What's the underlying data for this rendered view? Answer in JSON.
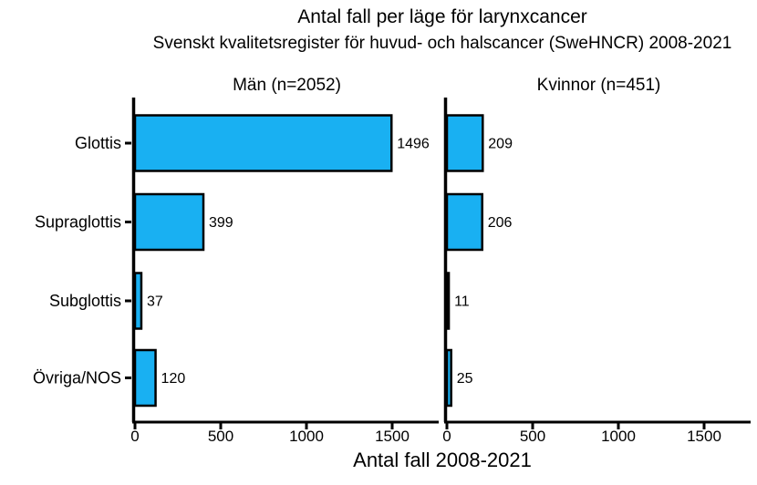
{
  "chart_data": {
    "type": "bar",
    "orientation": "horizontal",
    "title": "Antal fall per läge för larynxcancer",
    "subtitle": "Svenskt kvalitetsregister för huvud- och halscancer (SweHNCR) 2008-2021",
    "xlabel": "Antal fall 2008-2021",
    "categories": [
      "Glottis",
      "Supraglottis",
      "Subglottis",
      "Övriga/NOS"
    ],
    "series": [
      {
        "name": "Män (n=2052)",
        "values": [
          1496,
          399,
          37,
          120
        ]
      },
      {
        "name": "Kvinnor (n=451)",
        "values": [
          209,
          206,
          11,
          25
        ]
      }
    ],
    "xticks": [
      "0",
      "500",
      "1000",
      "1500"
    ],
    "xtick_values": [
      0,
      500,
      1000,
      1500
    ],
    "xlim": [
      0,
      1770
    ],
    "grid": false,
    "legend": "none",
    "bar_fill": "#19B0F2",
    "bar_stroke": "#000000",
    "axis_color": "#000000",
    "text_color": "#000000",
    "background": "#FFFFFF"
  }
}
